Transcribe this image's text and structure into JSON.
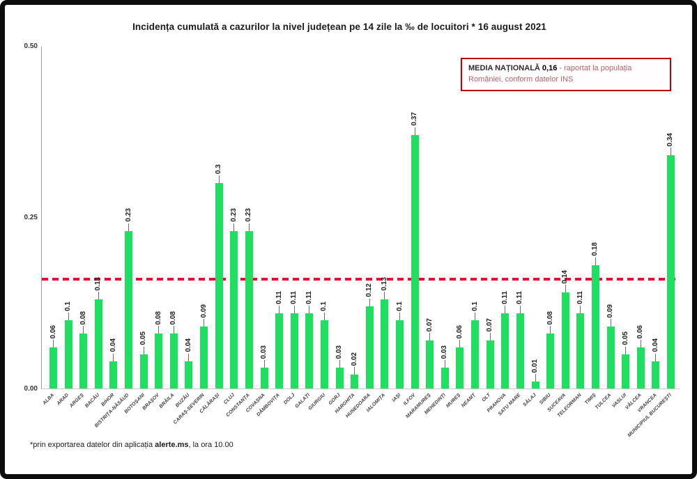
{
  "chart_data": {
    "type": "bar",
    "title": "Incidența cumulată a cazurilor la nivel județean pe 14 zile la ‰ de locuitori *  16 august 2021",
    "categories": [
      "ALBA",
      "ARAD",
      "ARGEȘ",
      "BACĂU",
      "BIHOR",
      "BISTRIȚA-NĂSĂUD",
      "BOTOȘANI",
      "BRAȘOV",
      "BRĂILA",
      "BUZĂU",
      "CARAȘ-SEVERIN",
      "CĂLĂRAȘI",
      "CLUJ",
      "CONSTANȚA",
      "COVASNA",
      "DÂMBOVIȚA",
      "DOLJ",
      "GALAȚI",
      "GIURGIU",
      "GORJ",
      "HARGHITA",
      "HUNEDOARA",
      "IALOMIȚA",
      "IAȘI",
      "ILFOV",
      "MARAMUREȘ",
      "MEHEDINȚI",
      "MUREȘ",
      "NEAMȚ",
      "OLT",
      "PRAHOVA",
      "SATU MARE",
      "SĂLAJ",
      "SIBIU",
      "SUCEAVA",
      "TELEORMAN",
      "TIMIȘ",
      "TULCEA",
      "VASLUI",
      "VÂLCEA",
      "VRANCEA",
      "MUNICIPIUL BUCUREȘTI"
    ],
    "values": [
      0.06,
      0.1,
      0.08,
      0.13,
      0.04,
      0.23,
      0.05,
      0.08,
      0.08,
      0.04,
      0.09,
      0.3,
      0.23,
      0.23,
      0.03,
      0.11,
      0.11,
      0.11,
      0.1,
      0.03,
      0.02,
      0.12,
      0.13,
      0.1,
      0.37,
      0.07,
      0.03,
      0.06,
      0.1,
      0.07,
      0.11,
      0.11,
      0.01,
      0.08,
      0.14,
      0.11,
      0.18,
      0.09,
      0.05,
      0.06,
      0.04,
      0.34
    ],
    "value_labels": [
      "0.06",
      "0.1",
      "0.08",
      "0.13",
      "0.04",
      "0.23",
      "0.05",
      "0.08",
      "0.08",
      "0.04",
      "0.09",
      "0.3",
      "0.23",
      "0.23",
      "0.03",
      "0.11",
      "0.11",
      "0.11",
      "0.1",
      "0.03",
      "0.02",
      "0.12",
      "0.13",
      "0.1",
      "0.37",
      "0.07",
      "0.03",
      "0.06",
      "0.1",
      "0.07",
      "0.11",
      "0.11",
      "0.01",
      "0.08",
      "0.14",
      "0.11",
      "0.18",
      "0.09",
      "0.05",
      "0.06",
      "0.04",
      "0.34"
    ],
    "xlabel": "",
    "ylabel": "",
    "ylim": [
      0,
      0.5
    ],
    "yticks": [
      "0.00",
      "0.25",
      "0.50"
    ],
    "grid": false,
    "legend_position": "none",
    "bar_color": "#1fdf60",
    "reference_line": {
      "value": 0.16,
      "style": "dashed",
      "color": "#e31233",
      "meaning": "national average"
    }
  },
  "annotation_box": {
    "label": "MEDIA NAȚIONALĂ ",
    "value": "0,16",
    "rest": " - raportat la populația României, conform datelor INS",
    "value_color": "#e83a55",
    "border_color": "#c00000"
  },
  "footnote": {
    "prefix": "*prin exportarea datelor din aplicația ",
    "app_name": "alerte.ms",
    "suffix": ", la ora 10.00"
  }
}
